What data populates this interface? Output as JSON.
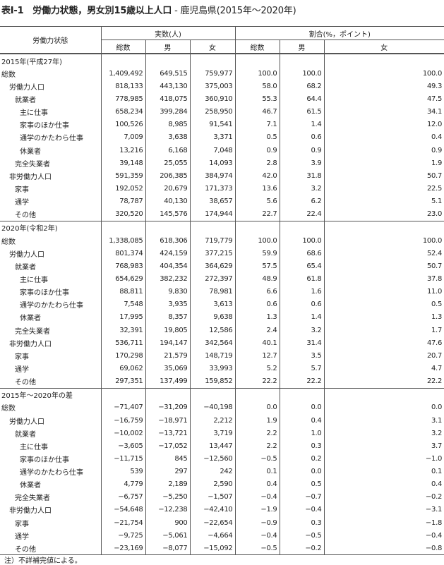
{
  "title": {
    "main": "表Ⅰ-1　労働力状態，男女別15歳以上人口",
    "sub": " - 鹿児島県(2015年～2020年)"
  },
  "header": {
    "row_label": "労働力状態",
    "group_counts": "実数(人)",
    "group_ratio": "割合(%，ポイント)",
    "cols": [
      "総数",
      "男",
      "女",
      "総数",
      "男",
      "女"
    ]
  },
  "sections": [
    {
      "label": "2015年(平成27年)",
      "rows": [
        {
          "label": "総数",
          "level": 0,
          "values": [
            "1,409,492",
            "649,515",
            "759,977",
            "100.0",
            "100.0",
            "100.0"
          ]
        },
        {
          "label": "労働力人口",
          "level": 1,
          "values": [
            "818,133",
            "443,130",
            "375,003",
            "58.0",
            "68.2",
            "49.3"
          ]
        },
        {
          "label": "就業者",
          "level": 2,
          "values": [
            "778,985",
            "418,075",
            "360,910",
            "55.3",
            "64.4",
            "47.5"
          ]
        },
        {
          "label": "主に仕事",
          "level": 3,
          "values": [
            "658,234",
            "399,284",
            "258,950",
            "46.7",
            "61.5",
            "34.1"
          ]
        },
        {
          "label": "家事のほか仕事",
          "level": 3,
          "values": [
            "100,526",
            "8,985",
            "91,541",
            "7.1",
            "1.4",
            "12.0"
          ]
        },
        {
          "label": "通学のかたわら仕事",
          "level": 3,
          "values": [
            "7,009",
            "3,638",
            "3,371",
            "0.5",
            "0.6",
            "0.4"
          ]
        },
        {
          "label": "休業者",
          "level": 3,
          "values": [
            "13,216",
            "6,168",
            "7,048",
            "0.9",
            "0.9",
            "0.9"
          ]
        },
        {
          "label": "完全失業者",
          "level": 2,
          "values": [
            "39,148",
            "25,055",
            "14,093",
            "2.8",
            "3.9",
            "1.9"
          ]
        },
        {
          "label": "非労働力人口",
          "level": 1,
          "values": [
            "591,359",
            "206,385",
            "384,974",
            "42.0",
            "31.8",
            "50.7"
          ]
        },
        {
          "label": "家事",
          "level": 2,
          "values": [
            "192,052",
            "20,679",
            "171,373",
            "13.6",
            "3.2",
            "22.5"
          ]
        },
        {
          "label": "通学",
          "level": 2,
          "values": [
            "78,787",
            "40,130",
            "38,657",
            "5.6",
            "6.2",
            "5.1"
          ]
        },
        {
          "label": "その他",
          "level": 2,
          "values": [
            "320,520",
            "145,576",
            "174,944",
            "22.7",
            "22.4",
            "23.0"
          ]
        }
      ]
    },
    {
      "label": "2020年(令和2年)",
      "rows": [
        {
          "label": "総数",
          "level": 0,
          "values": [
            "1,338,085",
            "618,306",
            "719,779",
            "100.0",
            "100.0",
            "100.0"
          ]
        },
        {
          "label": "労働力人口",
          "level": 1,
          "values": [
            "801,374",
            "424,159",
            "377,215",
            "59.9",
            "68.6",
            "52.4"
          ]
        },
        {
          "label": "就業者",
          "level": 2,
          "values": [
            "768,983",
            "404,354",
            "364,629",
            "57.5",
            "65.4",
            "50.7"
          ]
        },
        {
          "label": "主に仕事",
          "level": 3,
          "values": [
            "654,629",
            "382,232",
            "272,397",
            "48.9",
            "61.8",
            "37.8"
          ]
        },
        {
          "label": "家事のほか仕事",
          "level": 3,
          "values": [
            "88,811",
            "9,830",
            "78,981",
            "6.6",
            "1.6",
            "11.0"
          ]
        },
        {
          "label": "通学のかたわら仕事",
          "level": 3,
          "values": [
            "7,548",
            "3,935",
            "3,613",
            "0.6",
            "0.6",
            "0.5"
          ]
        },
        {
          "label": "休業者",
          "level": 3,
          "values": [
            "17,995",
            "8,357",
            "9,638",
            "1.3",
            "1.4",
            "1.3"
          ]
        },
        {
          "label": "完全失業者",
          "level": 2,
          "values": [
            "32,391",
            "19,805",
            "12,586",
            "2.4",
            "3.2",
            "1.7"
          ]
        },
        {
          "label": "非労働力人口",
          "level": 1,
          "values": [
            "536,711",
            "194,147",
            "342,564",
            "40.1",
            "31.4",
            "47.6"
          ]
        },
        {
          "label": "家事",
          "level": 2,
          "values": [
            "170,298",
            "21,579",
            "148,719",
            "12.7",
            "3.5",
            "20.7"
          ]
        },
        {
          "label": "通学",
          "level": 2,
          "values": [
            "69,062",
            "35,069",
            "33,993",
            "5.2",
            "5.7",
            "4.7"
          ]
        },
        {
          "label": "その他",
          "level": 2,
          "values": [
            "297,351",
            "137,499",
            "159,852",
            "22.2",
            "22.2",
            "22.2"
          ]
        }
      ]
    },
    {
      "label": "2015年～2020年の差",
      "rows": [
        {
          "label": "総数",
          "level": 0,
          "values": [
            "−71,407",
            "−31,209",
            "−40,198",
            "0.0",
            "0.0",
            "0.0"
          ]
        },
        {
          "label": "労働力人口",
          "level": 1,
          "values": [
            "−16,759",
            "−18,971",
            "2,212",
            "1.9",
            "0.4",
            "3.1"
          ]
        },
        {
          "label": "就業者",
          "level": 2,
          "values": [
            "−10,002",
            "−13,721",
            "3,719",
            "2.2",
            "1.0",
            "3.2"
          ]
        },
        {
          "label": "主に仕事",
          "level": 3,
          "values": [
            "−3,605",
            "−17,052",
            "13,447",
            "2.2",
            "0.3",
            "3.7"
          ]
        },
        {
          "label": "家事のほか仕事",
          "level": 3,
          "values": [
            "−11,715",
            "845",
            "−12,560",
            "−0.5",
            "0.2",
            "−1.0"
          ]
        },
        {
          "label": "通学のかたわら仕事",
          "level": 3,
          "values": [
            "539",
            "297",
            "242",
            "0.1",
            "0.0",
            "0.1"
          ]
        },
        {
          "label": "休業者",
          "level": 3,
          "values": [
            "4,779",
            "2,189",
            "2,590",
            "0.4",
            "0.5",
            "0.4"
          ]
        },
        {
          "label": "完全失業者",
          "level": 2,
          "values": [
            "−6,757",
            "−5,250",
            "−1,507",
            "−0.4",
            "−0.7",
            "−0.2"
          ]
        },
        {
          "label": "非労働力人口",
          "level": 1,
          "values": [
            "−54,648",
            "−12,238",
            "−42,410",
            "−1.9",
            "−0.4",
            "−3.1"
          ]
        },
        {
          "label": "家事",
          "level": 2,
          "values": [
            "−21,754",
            "900",
            "−22,654",
            "−0.9",
            "0.3",
            "−1.8"
          ]
        },
        {
          "label": "通学",
          "level": 2,
          "values": [
            "−9,725",
            "−5,061",
            "−4,664",
            "−0.4",
            "−0.5",
            "−0.4"
          ]
        },
        {
          "label": "その他",
          "level": 2,
          "values": [
            "−23,169",
            "−8,077",
            "−15,092",
            "−0.5",
            "−0.2",
            "−0.8"
          ]
        }
      ]
    }
  ],
  "note": "注）不詳補完値による。"
}
